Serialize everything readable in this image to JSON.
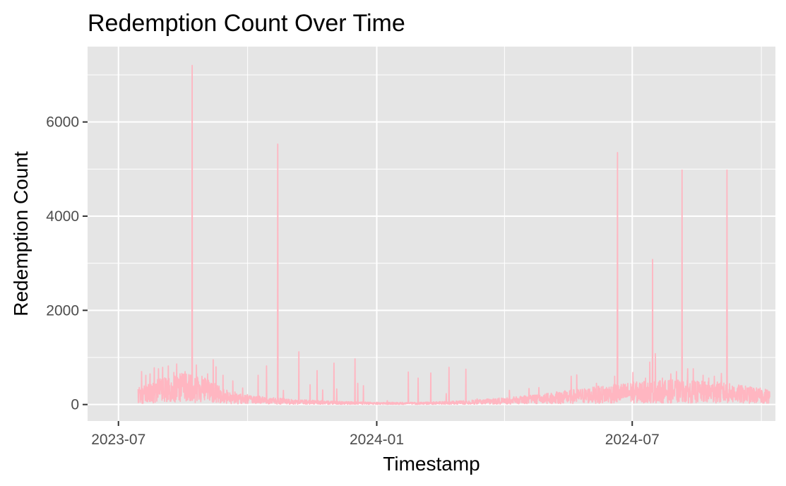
{
  "chart_data": {
    "type": "line",
    "title": "Redemption Count Over Time",
    "xlabel": "Timestamp",
    "ylabel": "Redemption Count",
    "xlim": [
      "2023-06-09",
      "2024-10-11"
    ],
    "ylim": [
      -350,
      7600
    ],
    "x_ticks": [
      "2023-07-01",
      "2024-01-01",
      "2024-07-01"
    ],
    "x_tick_labels": [
      "2023-07",
      "2024-01",
      "2024-07"
    ],
    "y_ticks": [
      0,
      2000,
      4000,
      6000
    ],
    "y_tick_labels": [
      "0",
      "2000",
      "4000",
      "6000"
    ],
    "grid": true,
    "legend": "none",
    "colors": {
      "line": "#ffb6c1",
      "panel": "#e5e5e5",
      "grid": "#ffffff",
      "tick": "#333333"
    },
    "series": [
      {
        "x_start": "2023-07-15",
        "x_end": "2024-10-07",
        "baseline": [
          [
            "2023-07-15",
            250
          ],
          [
            "2023-08-01",
            350
          ],
          [
            "2023-08-15",
            420
          ],
          [
            "2023-09-01",
            350
          ],
          [
            "2023-09-15",
            200
          ],
          [
            "2023-10-01",
            130
          ],
          [
            "2023-10-15",
            100
          ],
          [
            "2023-11-01",
            70
          ],
          [
            "2023-11-15",
            60
          ],
          [
            "2023-12-01",
            45
          ],
          [
            "2024-01-01",
            30
          ],
          [
            "2024-02-01",
            30
          ],
          [
            "2024-03-01",
            50
          ],
          [
            "2024-04-01",
            90
          ],
          [
            "2024-05-01",
            150
          ],
          [
            "2024-06-01",
            230
          ],
          [
            "2024-07-01",
            300
          ],
          [
            "2024-08-01",
            330
          ],
          [
            "2024-09-01",
            300
          ],
          [
            "2024-10-07",
            200
          ]
        ],
        "peaks": [
          [
            "2023-07-17",
            700
          ],
          [
            "2023-07-20",
            620
          ],
          [
            "2023-07-23",
            650
          ],
          [
            "2023-07-26",
            780
          ],
          [
            "2023-07-29",
            760
          ],
          [
            "2023-08-01",
            790
          ],
          [
            "2023-08-05",
            820
          ],
          [
            "2023-08-09",
            680
          ],
          [
            "2023-08-11",
            860
          ],
          [
            "2023-08-14",
            580
          ],
          [
            "2023-08-17",
            700
          ],
          [
            "2023-08-22",
            7200
          ],
          [
            "2023-08-25",
            840
          ],
          [
            "2023-08-29",
            600
          ],
          [
            "2023-09-02",
            650
          ],
          [
            "2023-09-06",
            950
          ],
          [
            "2023-09-08",
            800
          ],
          [
            "2023-09-13",
            620
          ],
          [
            "2023-09-20",
            500
          ],
          [
            "2023-09-27",
            350
          ],
          [
            "2023-10-08",
            620
          ],
          [
            "2023-10-14",
            820
          ],
          [
            "2023-10-22",
            5530
          ],
          [
            "2023-10-26",
            300
          ],
          [
            "2023-11-06",
            1120
          ],
          [
            "2023-11-14",
            420
          ],
          [
            "2023-11-19",
            720
          ],
          [
            "2023-11-23",
            310
          ],
          [
            "2023-12-01",
            880
          ],
          [
            "2023-12-03",
            330
          ],
          [
            "2023-12-16",
            970
          ],
          [
            "2023-12-18",
            450
          ],
          [
            "2023-12-22",
            400
          ],
          [
            "2024-01-08",
            80
          ],
          [
            "2024-01-23",
            690
          ],
          [
            "2024-01-30",
            560
          ],
          [
            "2024-02-08",
            670
          ],
          [
            "2024-02-19",
            230
          ],
          [
            "2024-02-21",
            790
          ],
          [
            "2024-03-04",
            750
          ],
          [
            "2024-03-12",
            120
          ],
          [
            "2024-04-04",
            300
          ],
          [
            "2024-04-18",
            340
          ],
          [
            "2024-04-25",
            360
          ],
          [
            "2024-05-18",
            600
          ],
          [
            "2024-05-22",
            630
          ],
          [
            "2024-06-05",
            450
          ],
          [
            "2024-06-18",
            600
          ],
          [
            "2024-06-20",
            5350
          ],
          [
            "2024-06-24",
            400
          ],
          [
            "2024-07-01",
            680
          ],
          [
            "2024-07-10",
            560
          ],
          [
            "2024-07-13",
            900
          ],
          [
            "2024-07-15",
            3080
          ],
          [
            "2024-07-17",
            1080
          ],
          [
            "2024-07-22",
            560
          ],
          [
            "2024-07-28",
            650
          ],
          [
            "2024-08-01",
            700
          ],
          [
            "2024-08-05",
            4980
          ],
          [
            "2024-08-09",
            760
          ],
          [
            "2024-08-13",
            760
          ],
          [
            "2024-08-20",
            620
          ],
          [
            "2024-08-24",
            560
          ],
          [
            "2024-08-28",
            600
          ],
          [
            "2024-09-02",
            660
          ],
          [
            "2024-09-06",
            4980
          ],
          [
            "2024-09-10",
            380
          ],
          [
            "2024-09-15",
            350
          ],
          [
            "2024-09-24",
            300
          ],
          [
            "2024-10-01",
            280
          ]
        ]
      }
    ]
  }
}
